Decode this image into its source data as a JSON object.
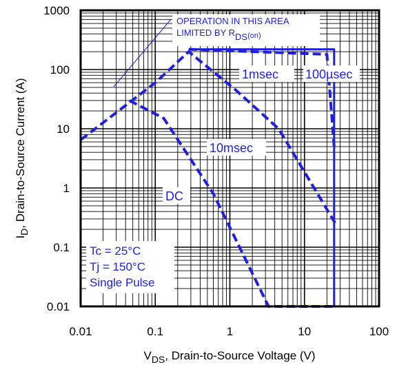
{
  "chart_data": {
    "type": "line",
    "x_scale": "log",
    "y_scale": "log",
    "xlim": [
      0.01,
      100
    ],
    "ylim": [
      0.01,
      1000
    ],
    "grid": true,
    "x_ticks": [
      "0.01",
      "0.1",
      "1",
      "10",
      "100"
    ],
    "y_ticks": [
      "1000",
      "100",
      "10",
      "1",
      "0.1",
      "0.01"
    ],
    "xlabel": {
      "main": "V",
      "sub": "DS",
      "rest": ", Drain-to-Source Voltage (V)"
    },
    "ylabel": {
      "main": "I",
      "sub": "D",
      "rest": ",  Drain-to-Source Current (A)"
    },
    "annotation": {
      "line1": "OPERATION IN THIS AREA",
      "line2_prefix": "LIMITED BY R",
      "line2_sub": "DS",
      "line2_suffix": "(on)"
    },
    "conditions": [
      "Tc = 25°C",
      "Tj = 150°C",
      "Single Pulse"
    ],
    "series_color": "#1f1fe0",
    "series": [
      {
        "name": "100µsec",
        "style": "solid",
        "points": [
          [
            0.28,
            220
          ],
          [
            25,
            220
          ],
          [
            25,
            0.01
          ]
        ]
      },
      {
        "name": "1msec",
        "style": "dashed",
        "points": [
          [
            0.28,
            220
          ],
          [
            20,
            180
          ],
          [
            25,
            5
          ]
        ]
      },
      {
        "name": "10msec",
        "style": "dashed",
        "points": [
          [
            0.01,
            6.5
          ],
          [
            0.1,
            60
          ],
          [
            0.28,
            200
          ],
          [
            1.2,
            45
          ],
          [
            4.5,
            10
          ],
          [
            26,
            0.25
          ]
        ]
      },
      {
        "name": "DC",
        "style": "dashed",
        "points": [
          [
            0.045,
            30
          ],
          [
            0.13,
            15
          ],
          [
            0.6,
            0.8
          ],
          [
            3.3,
            0.01
          ],
          [
            25,
            0.01
          ]
        ]
      }
    ]
  }
}
